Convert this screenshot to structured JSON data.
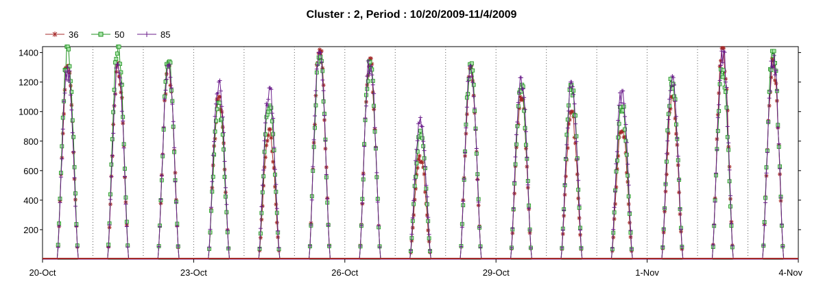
{
  "chart_data": {
    "type": "line",
    "title": "Cluster : 2, Period : 10/20/2009-11/4/2009",
    "xlabel": "",
    "ylabel": "",
    "x_range": [
      "2009-10-20",
      "2009-11-04"
    ],
    "ylim": [
      0,
      1440
    ],
    "x_ticks": [
      {
        "label": "20-Oct",
        "date": "2009-10-20"
      },
      {
        "label": "23-Oct",
        "date": "2009-10-23"
      },
      {
        "label": "26-Oct",
        "date": "2009-10-26"
      },
      {
        "label": "29-Oct",
        "date": "2009-10-29"
      },
      {
        "label": "1-Nov",
        "date": "2009-11-01"
      },
      {
        "label": "4-Nov",
        "date": "2009-11-04"
      }
    ],
    "y_ticks": [
      200,
      400,
      600,
      800,
      1000,
      1200,
      1400
    ],
    "grid": {
      "vertical": true,
      "horizontal": false,
      "style": "dotted"
    },
    "legend": {
      "placement": "top-left"
    },
    "series": [
      {
        "name": "36",
        "color": "#a52a2a",
        "marker": "star"
      },
      {
        "name": "50",
        "color": "#1e8f1e",
        "marker": "square"
      },
      {
        "name": "85",
        "color": "#6a1b8a",
        "marker": "plus"
      }
    ],
    "daily_peaks": [
      {
        "date": "2009-10-20",
        "values": [
          1310,
          1440,
          1300
        ]
      },
      {
        "date": "2009-10-21",
        "values": [
          1330,
          1440,
          1320
        ]
      },
      {
        "date": "2009-10-22",
        "values": [
          1310,
          1340,
          1320
        ]
      },
      {
        "date": "2009-10-23",
        "values": [
          1100,
          1060,
          1210
        ]
      },
      {
        "date": "2009-10-24",
        "values": [
          880,
          1040,
          1160
        ]
      },
      {
        "date": "2009-10-25",
        "values": [
          1420,
          1390,
          1400
        ]
      },
      {
        "date": "2009-10-26",
        "values": [
          1360,
          1340,
          1350
        ]
      },
      {
        "date": "2009-10-27",
        "values": [
          700,
          870,
          960
        ]
      },
      {
        "date": "2009-10-28",
        "values": [
          1320,
          1330,
          1310
        ]
      },
      {
        "date": "2009-10-29",
        "values": [
          1100,
          1200,
          1230
        ]
      },
      {
        "date": "2009-10-30",
        "values": [
          1000,
          1180,
          1200
        ]
      },
      {
        "date": "2009-10-31",
        "values": [
          900,
          1050,
          1140
        ]
      },
      {
        "date": "2009-11-01",
        "values": [
          1100,
          1230,
          1240
        ]
      },
      {
        "date": "2009-11-02",
        "values": [
          1430,
          1300,
          1410
        ]
      },
      {
        "date": "2009-11-03",
        "values": [
          1360,
          1410,
          1380
        ]
      }
    ]
  }
}
